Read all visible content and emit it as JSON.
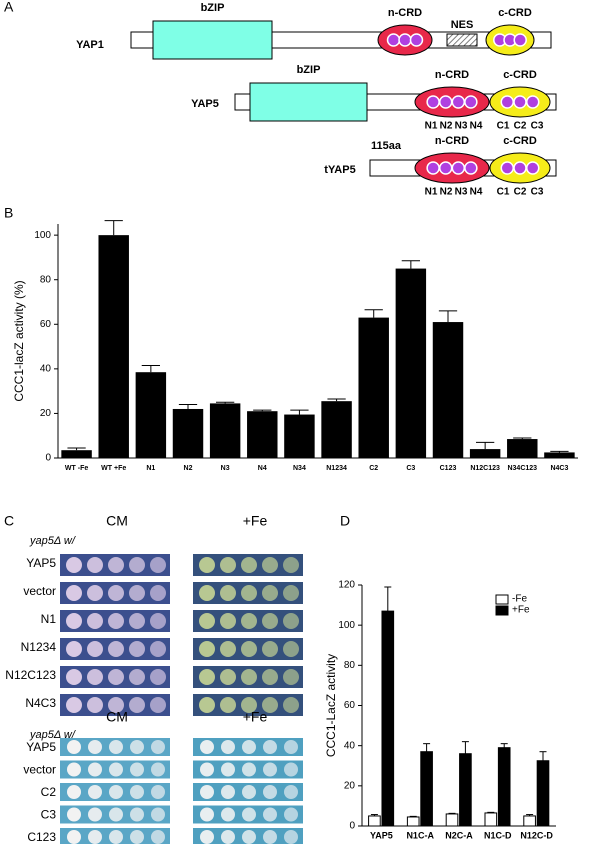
{
  "panel_labels": [
    "A",
    "B",
    "C",
    "D"
  ],
  "diagram": {
    "constructs": [
      {
        "name": "YAP1",
        "bzip": "bZIP",
        "ncrd": "n-CRD",
        "nes": "NES",
        "ccrd": "c-CRD"
      },
      {
        "name": "YAP5",
        "bzip": "bZIP",
        "ncrd": "n-CRD",
        "ccrd": "c-CRD",
        "n_sites": [
          "N1",
          "N2",
          "N3",
          "N4"
        ],
        "c_sites": [
          "C1",
          "C2",
          "C3"
        ]
      },
      {
        "name": "tYAP5",
        "truncation": "115aa",
        "ncrd": "n-CRD",
        "ccrd": "c-CRD",
        "n_sites": [
          "N1",
          "N2",
          "N3",
          "N4"
        ],
        "c_sites": [
          "C1",
          "C2",
          "C3"
        ]
      }
    ]
  },
  "chart_data": [
    {
      "type": "bar",
      "ylabel": "CCC1-lacZ activity (%)",
      "color": "#000000",
      "categories": [
        "WT -Fe",
        "WT +Fe",
        "N1",
        "N2",
        "N3",
        "N4",
        "N34",
        "N1234",
        "C2",
        "C3",
        "C123",
        "N12C123",
        "N34C123",
        "N4C3"
      ],
      "values": [
        3.5,
        100,
        38.5,
        22,
        24.5,
        21,
        19.5,
        25.5,
        63,
        85,
        61,
        4,
        8.5,
        2.5
      ],
      "errors": [
        1,
        6.5,
        3,
        2,
        0.5,
        0.5,
        2,
        1,
        3.5,
        3.5,
        5,
        3,
        0.5,
        0.5
      ],
      "ylim": [
        0,
        105
      ],
      "yticks": [
        0,
        20,
        40,
        60,
        80,
        100
      ]
    },
    {
      "type": "bar",
      "ylabel": "CCC1-LacZ activity",
      "legend": "upper right",
      "categories": [
        "YAP5",
        "N1C-A",
        "N2C-A",
        "N1C-D",
        "N12C-D"
      ],
      "series": [
        {
          "name": "-Fe",
          "color": "#ffffff",
          "values": [
            5,
            4.5,
            6,
            6.5,
            5
          ],
          "errors": [
            0.7,
            0.3,
            0.3,
            0.3,
            0.7
          ]
        },
        {
          "name": "+Fe",
          "color": "#000000",
          "values": [
            107,
            37,
            36,
            39,
            32.5
          ],
          "errors": [
            12,
            4,
            6,
            2,
            4.5
          ]
        }
      ],
      "ylim": [
        0,
        120
      ],
      "yticks": [
        0,
        20,
        40,
        60,
        80,
        100,
        120
      ]
    }
  ],
  "plates": {
    "groups": [
      {
        "prefix": "yap5Δ w/",
        "conditions": [
          "CM",
          "+Fe"
        ],
        "strains": [
          "YAP5",
          "vector",
          "N1",
          "N1234",
          "N12C123",
          "N4C3"
        ]
      },
      {
        "prefix": "yap5Δ w/",
        "conditions": [
          "CM",
          "+Fe"
        ],
        "strains": [
          "YAP5",
          "vector",
          "C2",
          "C3",
          "C123"
        ]
      }
    ]
  }
}
